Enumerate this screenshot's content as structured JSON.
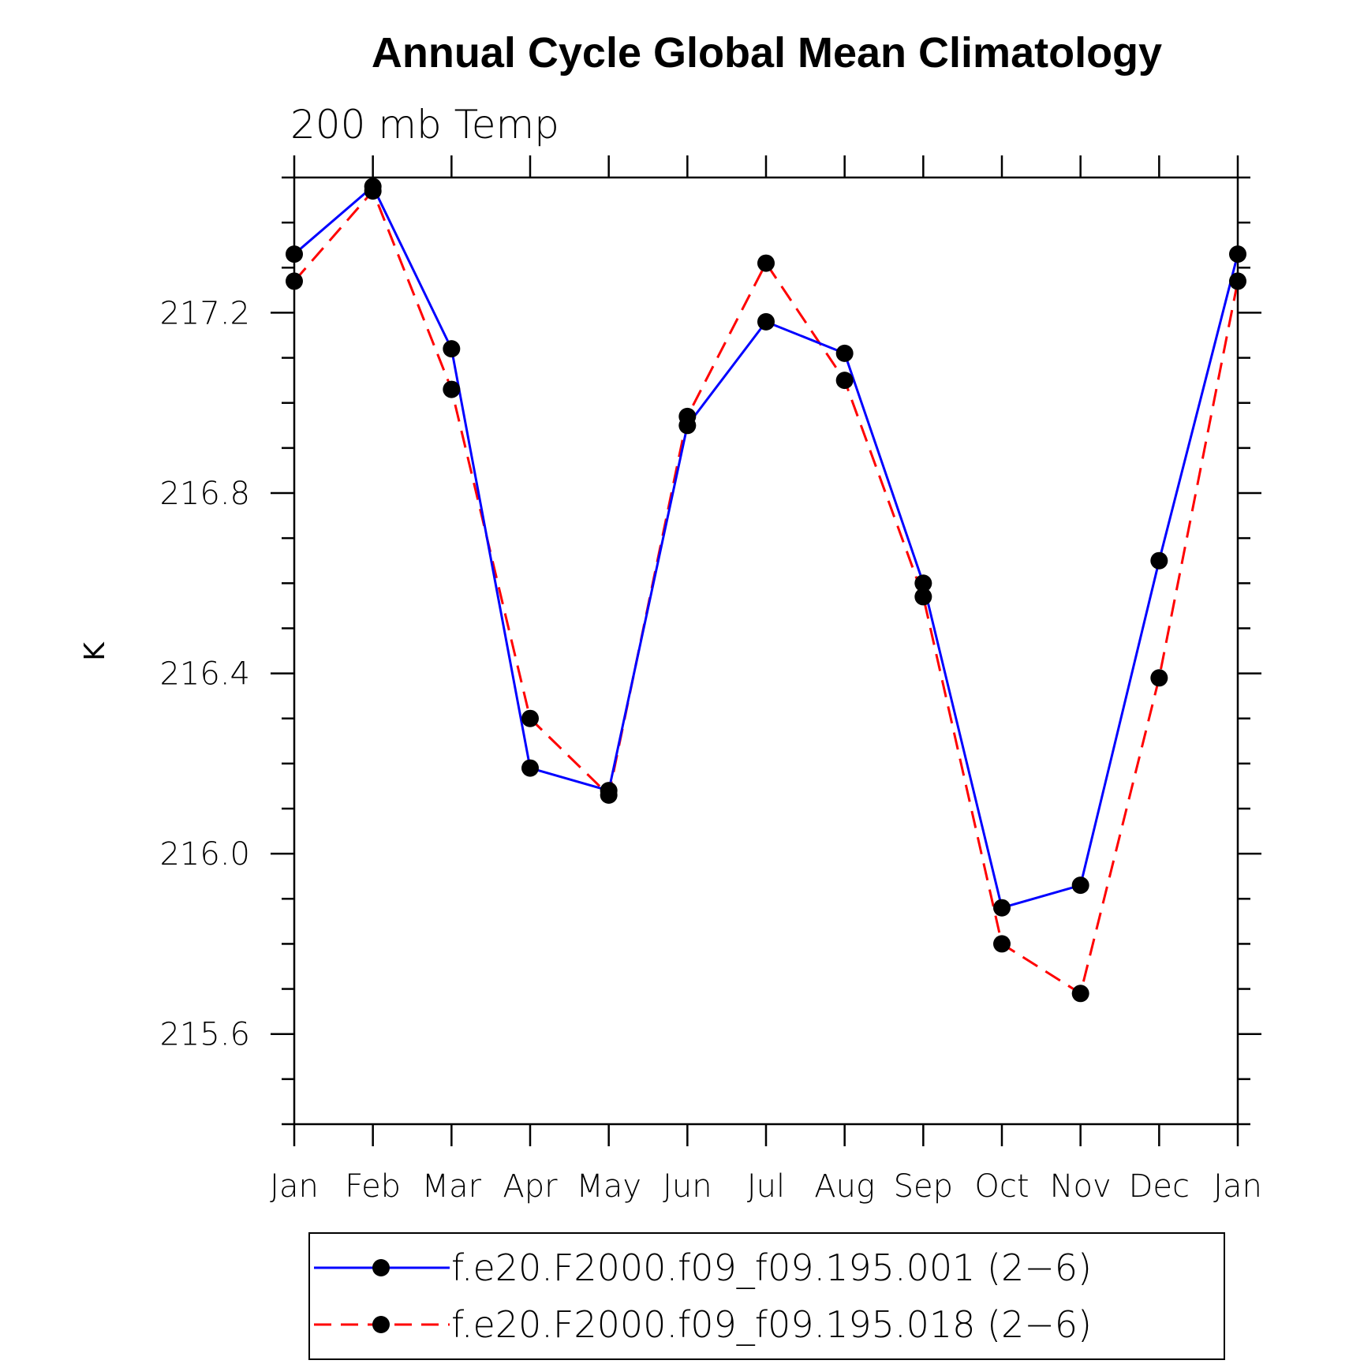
{
  "chart_data": {
    "type": "line",
    "title": "Annual Cycle Global Mean Climatology",
    "subtitle": "200 mb Temp",
    "xlabel": "",
    "ylabel": "K",
    "categories": [
      "Jan",
      "Feb",
      "Mar",
      "Apr",
      "May",
      "Jun",
      "Jul",
      "Aug",
      "Sep",
      "Oct",
      "Nov",
      "Dec",
      "Jan"
    ],
    "ylim": [
      215.4,
      217.5
    ],
    "yticks": [
      "215.6",
      "216.0",
      "216.4",
      "216.8",
      "217.2"
    ],
    "grid": false,
    "legend_position": "bottom",
    "series": [
      {
        "name": "f.e20.F2000.f09_f09.195.001 (2−6)",
        "color": "#0000ff",
        "line_style": "solid",
        "marker": "filled-circle",
        "values": [
          217.33,
          217.48,
          217.12,
          216.19,
          216.14,
          216.95,
          217.18,
          217.11,
          216.6,
          215.88,
          215.93,
          216.65,
          217.33
        ]
      },
      {
        "name": "f.e20.F2000.f09_f09.195.018 (2−6)",
        "color": "#ff0000",
        "line_style": "dashed",
        "marker": "filled-circle",
        "values": [
          217.27,
          217.47,
          217.03,
          216.3,
          216.13,
          216.97,
          217.31,
          217.05,
          216.57,
          215.8,
          215.69,
          216.39,
          217.27
        ]
      }
    ]
  }
}
